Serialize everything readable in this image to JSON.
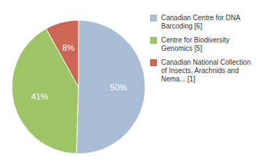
{
  "chart_data": {
    "type": "pie",
    "categories": [
      "Canadian Centre for DNA\nBarcoding [6]",
      "Centre for Biodiversity\nGenomics [5]",
      "Canadian National Collection\nof Insects, Arachnids and\nNema... [1]"
    ],
    "values": [
      50,
      41,
      8
    ],
    "value_labels": [
      "50%",
      "41%",
      "8%"
    ],
    "data_labels": true,
    "colors": [
      "#a8bcd4",
      "#9dc465",
      "#cc6655"
    ],
    "legend": "right"
  }
}
